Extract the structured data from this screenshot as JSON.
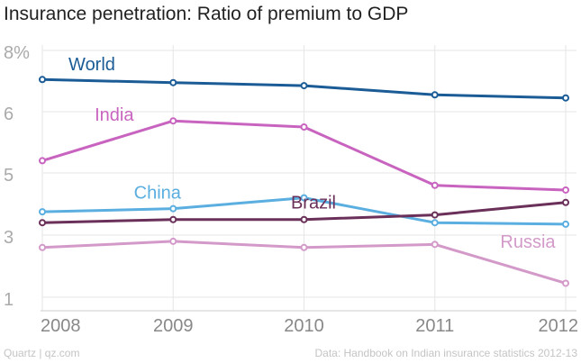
{
  "chart_data": {
    "type": "line",
    "title": "Insurance penetration: Ratio of premium to GDP",
    "xlabel": "",
    "ylabel": "",
    "x": [
      "2008",
      "2009",
      "2010",
      "2011",
      "2012"
    ],
    "xlim": [
      2008,
      2012
    ],
    "ylim": [
      1,
      8
    ],
    "y_ticks": [
      {
        "value": 8,
        "label": "8%"
      },
      {
        "value": 6,
        "label": "6"
      },
      {
        "value": 5,
        "label": "5"
      },
      {
        "value": 3,
        "label": "3"
      },
      {
        "value": 1,
        "label": "1"
      }
    ],
    "grid": true,
    "series": [
      {
        "name": "World",
        "color": "#1b5c96",
        "label_anchor_x": 2008.2,
        "label_anchor_y": 7.35,
        "values": [
          7.05,
          6.95,
          6.85,
          6.55,
          6.45
        ]
      },
      {
        "name": "India",
        "color": "#c864bf",
        "label_anchor_x": 2008.4,
        "label_anchor_y": 5.85,
        "values": [
          5.2,
          5.85,
          5.75,
          4.6,
          4.45
        ]
      },
      {
        "name": "China",
        "color": "#5aaee0",
        "label_anchor_x": 2008.7,
        "label_anchor_y": 4.17,
        "values": [
          3.75,
          3.85,
          4.2,
          3.4,
          3.35
        ]
      },
      {
        "name": "Brazil",
        "color": "#6a3059",
        "label_anchor_x": 2009.9,
        "label_anchor_y": 3.85,
        "values": [
          3.4,
          3.5,
          3.5,
          3.65,
          4.05
        ]
      },
      {
        "name": "Russia",
        "color": "#d39ac9",
        "label_anchor_x": 2011.5,
        "label_anchor_y": 2.6,
        "values": [
          2.6,
          2.8,
          2.6,
          2.7,
          1.45
        ]
      }
    ]
  },
  "footer": {
    "source_left": "Quartz | qz.com",
    "source_right": "Data: Handbook on Indian insurance statistics 2012-13"
  }
}
